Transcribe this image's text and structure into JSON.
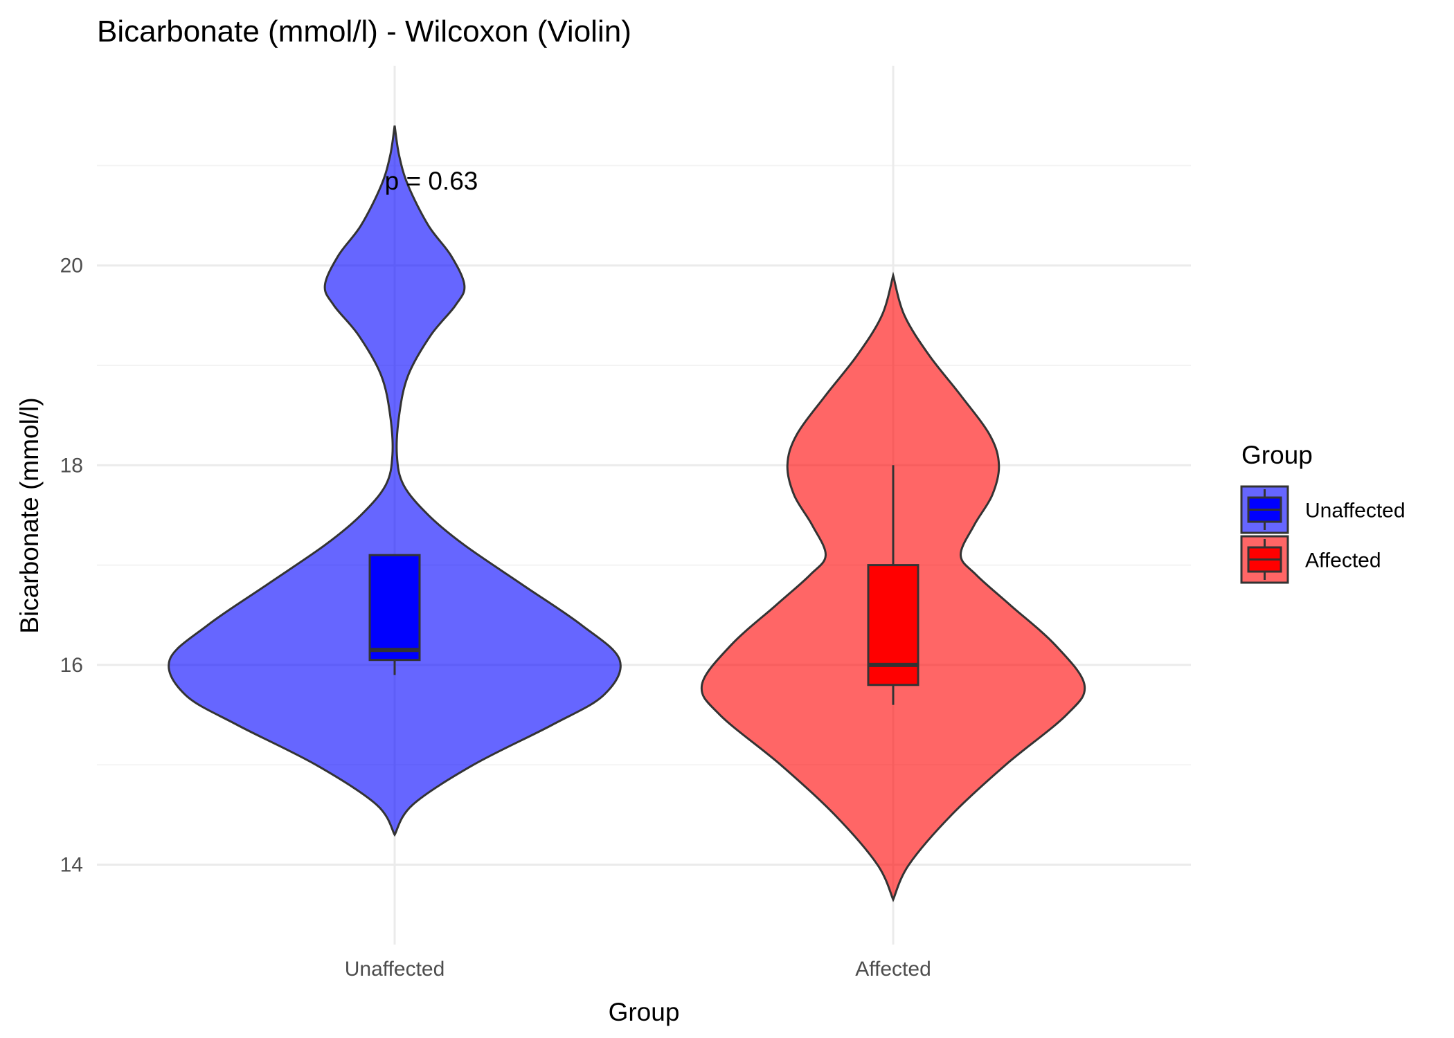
{
  "chart_data": {
    "type": "violin",
    "title": "Bicarbonate (mmol/l) - Wilcoxon (Violin)",
    "xlabel": "Group",
    "ylabel": "Bicarbonate (mmol/l)",
    "categories": [
      "Unaffected",
      "Affected"
    ],
    "ylim": [
      13.2,
      22.0
    ],
    "yticks": [
      14,
      16,
      18,
      20
    ],
    "grid": true,
    "annotation": {
      "text": "p = 0.63",
      "x": "Unaffected",
      "y": 20.85
    },
    "legend": {
      "title": "Group",
      "position": "right",
      "entries": [
        "Unaffected",
        "Affected"
      ]
    },
    "series": [
      {
        "name": "Unaffected",
        "color": "#0000ff",
        "violin_alpha": 0.6,
        "box": {
          "whisker_low": 15.9,
          "q1": 16.05,
          "median": 16.15,
          "q3": 17.1,
          "whisker_high": 17.1
        },
        "density": {
          "y": [
            14.3,
            14.6,
            15.0,
            15.4,
            15.7,
            16.05,
            16.4,
            16.8,
            17.2,
            17.5,
            17.8,
            18.1,
            18.5,
            18.9,
            19.3,
            19.6,
            19.8,
            20.1,
            20.4,
            20.8,
            21.1,
            21.4
          ],
          "halfwidth": [
            0.0,
            0.08,
            0.35,
            0.7,
            0.93,
            1.0,
            0.83,
            0.57,
            0.31,
            0.15,
            0.04,
            0.01,
            0.02,
            0.06,
            0.16,
            0.27,
            0.31,
            0.25,
            0.15,
            0.06,
            0.02,
            0.0
          ]
        }
      },
      {
        "name": "Affected",
        "color": "#ff0000",
        "violin_alpha": 0.6,
        "box": {
          "whisker_low": 15.6,
          "q1": 15.8,
          "median": 16.0,
          "q3": 17.0,
          "whisker_high": 18.0
        },
        "density": {
          "y": [
            13.65,
            14.0,
            14.5,
            15.0,
            15.5,
            15.8,
            16.2,
            16.6,
            16.9,
            17.1,
            17.4,
            17.7,
            18.0,
            18.3,
            18.7,
            19.1,
            19.5,
            19.9
          ],
          "halfwidth": [
            0.0,
            0.07,
            0.26,
            0.5,
            0.77,
            0.85,
            0.72,
            0.52,
            0.37,
            0.3,
            0.36,
            0.44,
            0.47,
            0.43,
            0.3,
            0.16,
            0.05,
            0.0
          ]
        }
      }
    ]
  }
}
